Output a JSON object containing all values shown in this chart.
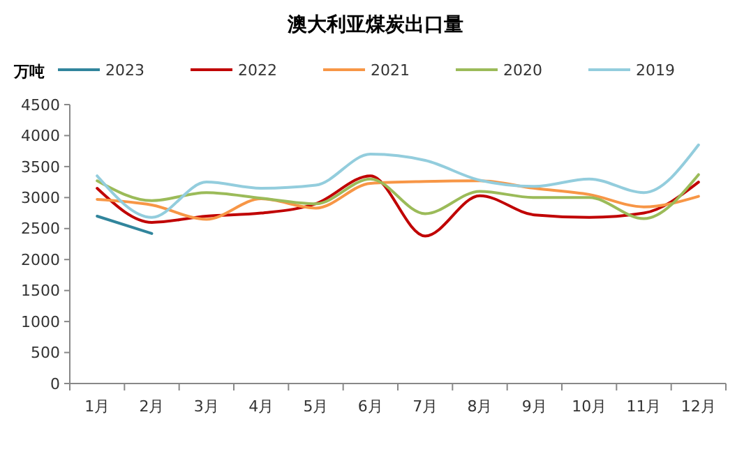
{
  "chart_data": {
    "type": "line",
    "title": "澳大利亚煤炭出口量",
    "ylabel": "万吨",
    "categories": [
      "1月",
      "2月",
      "3月",
      "4月",
      "5月",
      "6月",
      "7月",
      "8月",
      "9月",
      "10月",
      "11月",
      "12月"
    ],
    "series": [
      {
        "name": "2023",
        "color": "#31859c",
        "values": [
          2700,
          2420,
          null,
          null,
          null,
          null,
          null,
          null,
          null,
          null,
          null,
          null
        ]
      },
      {
        "name": "2022",
        "color": "#c00000",
        "values": [
          3150,
          2600,
          2700,
          2750,
          2900,
          3350,
          2380,
          3030,
          2720,
          2680,
          2750,
          3250
        ]
      },
      {
        "name": "2021",
        "color": "#f79646",
        "values": [
          2970,
          2880,
          2650,
          2980,
          2830,
          3230,
          3260,
          3270,
          3150,
          3050,
          2850,
          3020
        ]
      },
      {
        "name": "2020",
        "color": "#9bbb59",
        "values": [
          3270,
          2950,
          3080,
          2990,
          2900,
          3300,
          2740,
          3100,
          3000,
          3000,
          2660,
          3370
        ]
      },
      {
        "name": "2019",
        "color": "#93cddd",
        "values": [
          3350,
          2680,
          3250,
          3150,
          3200,
          3700,
          3600,
          3280,
          3180,
          3300,
          3080,
          3850
        ]
      }
    ],
    "ylim": [
      0,
      4500
    ],
    "yticks": [
      0,
      500,
      1000,
      1500,
      2000,
      2500,
      3000,
      3500,
      4000,
      4500
    ],
    "legend": "top",
    "grid": false,
    "marker": "none",
    "line_style": "solid"
  }
}
